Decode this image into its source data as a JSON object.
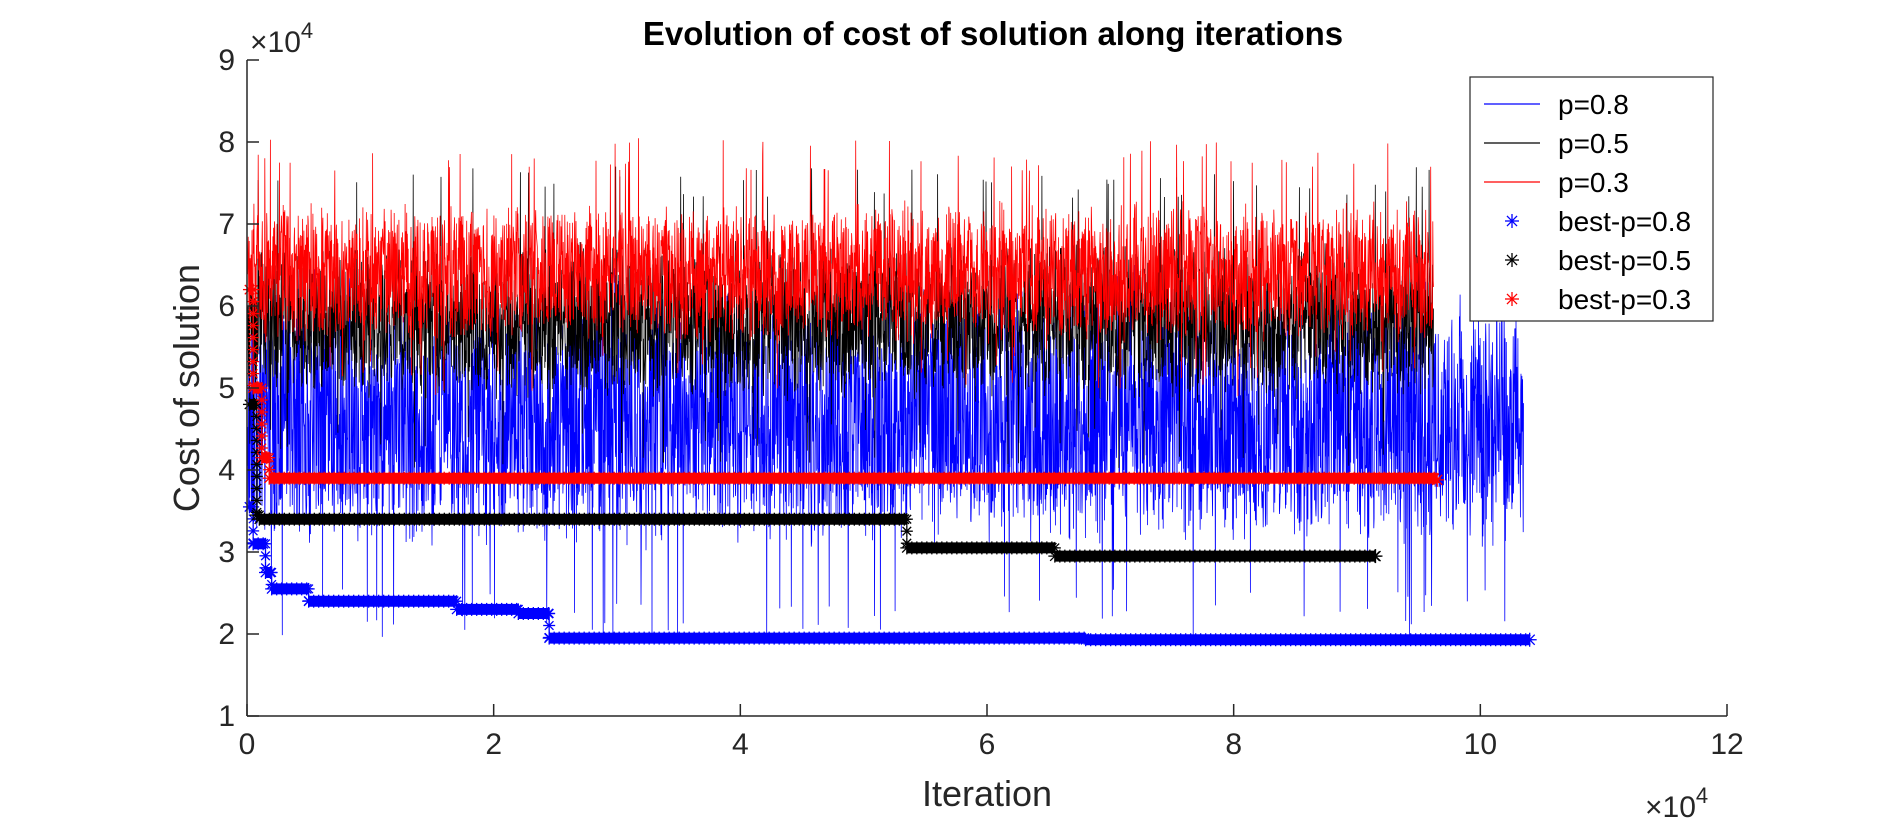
{
  "chart_data": {
    "type": "line",
    "title": "Evolution of cost of solution along iterations",
    "xlabel": "Iteration",
    "ylabel": "Cost of solution",
    "x_multiplier": "×10",
    "x_exponent": "4",
    "y_multiplier": "×10",
    "y_exponent": "4",
    "xlim": [
      0,
      12
    ],
    "ylim": [
      1,
      9
    ],
    "xticks": [
      "0",
      "2",
      "4",
      "6",
      "8",
      "10",
      "12"
    ],
    "yticks": [
      "1",
      "2",
      "3",
      "4",
      "5",
      "6",
      "7",
      "8",
      "9"
    ],
    "grid": false,
    "legend_position": "top-right",
    "legend": [
      "p=0.8",
      "p=0.5",
      "p=0.3",
      "best-p=0.8",
      "best-p=0.5",
      "best-p=0.3"
    ],
    "series": [
      {
        "name": "p=0.8",
        "style": "line",
        "color": "#0000ff",
        "x_end": 10.35,
        "band": [
          3.0,
          6.2
        ],
        "min": 1.95,
        "max": 6.5
      },
      {
        "name": "p=0.5",
        "style": "line",
        "color": "#000000",
        "x_end": 9.62,
        "band": [
          4.8,
          6.8
        ],
        "min": 4.0,
        "max": 7.7
      },
      {
        "name": "p=0.3",
        "style": "line",
        "color": "#ff0000",
        "x_end": 9.62,
        "band": [
          5.5,
          7.3
        ],
        "min": 4.9,
        "max": 8.05
      },
      {
        "name": "best-p=0.8",
        "style": "markers",
        "marker": "*",
        "color": "#0000ff",
        "steps": [
          [
            0.02,
            3.55
          ],
          [
            0.05,
            3.1
          ],
          [
            0.15,
            2.75
          ],
          [
            0.2,
            2.55
          ],
          [
            0.5,
            2.4
          ],
          [
            1.7,
            2.3
          ],
          [
            2.2,
            2.25
          ],
          [
            2.45,
            1.95
          ],
          [
            6.8,
            1.93
          ],
          [
            10.4,
            1.93
          ]
        ]
      },
      {
        "name": "best-p=0.5",
        "style": "markers",
        "marker": "*",
        "color": "#000000",
        "steps": [
          [
            0.02,
            4.8
          ],
          [
            0.08,
            3.45
          ],
          [
            0.1,
            3.4
          ],
          [
            5.35,
            3.05
          ],
          [
            6.55,
            2.95
          ],
          [
            9.15,
            2.95
          ]
        ]
      },
      {
        "name": "best-p=0.3",
        "style": "markers",
        "marker": "*",
        "color": "#ff0000",
        "steps": [
          [
            0.02,
            6.2
          ],
          [
            0.05,
            5.0
          ],
          [
            0.12,
            4.15
          ],
          [
            0.18,
            3.9
          ],
          [
            9.65,
            3.88
          ]
        ]
      }
    ]
  }
}
